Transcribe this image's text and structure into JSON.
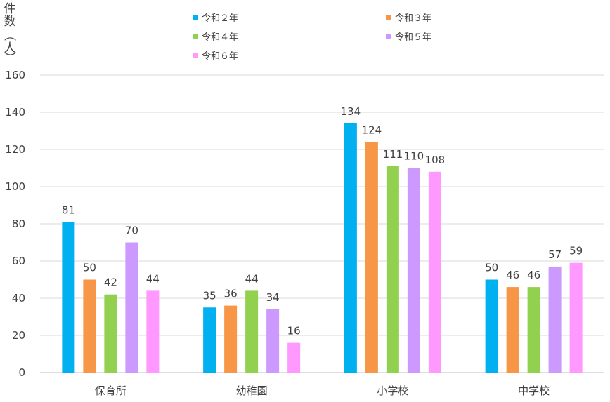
{
  "chart_data": {
    "type": "bar",
    "ylabel": "件数（人）",
    "ylim": [
      0,
      160
    ],
    "yticks": [
      0,
      20,
      40,
      60,
      80,
      100,
      120,
      140,
      160
    ],
    "grid": true,
    "legend_position": "top",
    "categories": [
      "保育所",
      "幼稚園",
      "小学校",
      "中学校"
    ],
    "series": [
      {
        "name": "令和２年",
        "color": "#00b0f0",
        "values": [
          81,
          35,
          134,
          50
        ]
      },
      {
        "name": "令和３年",
        "color": "#f79646",
        "values": [
          50,
          36,
          124,
          46
        ]
      },
      {
        "name": "令和４年",
        "color": "#92d050",
        "values": [
          42,
          44,
          111,
          46
        ]
      },
      {
        "name": "令和５年",
        "color": "#cc99ff",
        "values": [
          70,
          34,
          110,
          57
        ]
      },
      {
        "name": "令和６年",
        "color": "#ff99ff",
        "values": [
          44,
          16,
          108,
          59
        ]
      }
    ]
  }
}
